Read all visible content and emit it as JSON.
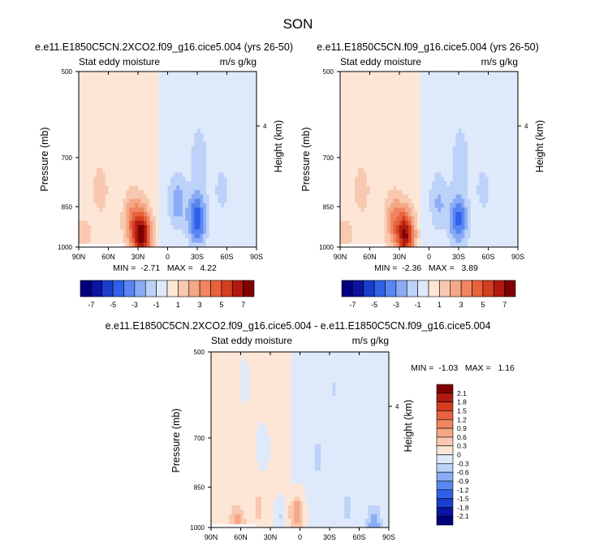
{
  "page_title": "SON",
  "panels": [
    {
      "title": "e.e11.E1850C5CN.2XCO2.f09_g16.cice5.004 (yrs 26-50)",
      "left_label": "Stat eddy moisture",
      "right_label": "m/s g/kg",
      "ylabel": "Pressure (mb)",
      "y2label": "Height (km)",
      "minmax": "MIN =  -2.71   MAX =   4.22"
    },
    {
      "title": "e.e11.E1850C5CN.f09_g16.cice5.004 (yrs 26-50)",
      "left_label": "Stat eddy moisture",
      "right_label": "m/s g/kg",
      "ylabel": "Pressure (mb)",
      "y2label": "Height (km)",
      "minmax": "MIN =  -2.36   MAX =   3.89"
    },
    {
      "title": "e.e11.E1850C5CN.2XCO2.f09_g16.cice5.004 - e.e11.E1850C5CN.f09_g16.cice5.004",
      "left_label": "Stat eddy moisture",
      "right_label": "m/s g/kg",
      "ylabel": "Pressure (mb)",
      "y2label": "Height (km)",
      "minmax": "MIN =  -1.03   MAX =   1.16"
    }
  ],
  "axes": {
    "x_ticks": [
      "90N",
      "60N",
      "30N",
      "0",
      "30S",
      "60S",
      "90S"
    ],
    "y_ticks": [
      "500",
      "700",
      "850",
      "1000"
    ],
    "y2_ticks": [
      "4"
    ]
  },
  "colorbar_top": {
    "colors": [
      "#00007f",
      "#0a14a0",
      "#1b3ecc",
      "#3060e8",
      "#5a86f2",
      "#8aacf6",
      "#bdd2f8",
      "#dee9fb",
      "#fde6d6",
      "#f8c8b0",
      "#f5a886",
      "#f08560",
      "#e8623d",
      "#d33e20",
      "#b01a10",
      "#7f0000"
    ],
    "labels": [
      "-7",
      "-5",
      "-3",
      "-1",
      "1",
      "3",
      "5",
      "7"
    ]
  },
  "colorbar_bottom": {
    "colors": [
      "#00007f",
      "#0a14a0",
      "#1b3ecc",
      "#3060e8",
      "#5a86f2",
      "#8aacf6",
      "#bdd2f8",
      "#dee9fb",
      "#fde6d6",
      "#f8c8b0",
      "#f5a886",
      "#f08560",
      "#e8623d",
      "#d33e20",
      "#b01a10",
      "#7f0000"
    ],
    "labels": [
      "-2.1",
      "-1.8",
      "-1.5",
      "-1.2",
      "-0.9",
      "-0.6",
      "-0.3",
      "0",
      "0.3",
      "0.6",
      "0.9",
      "1.2",
      "1.5",
      "1.8",
      "2.1"
    ]
  },
  "chart_data": [
    {
      "type": "heatmap",
      "title": "e.e11.E1850C5CN.2XCO2.f09_g16.cice5.004 (yrs 26-50)",
      "xlabel": "",
      "ylabel": "Pressure (mb)",
      "y2label": "Height (km)",
      "x": [
        "90N",
        "60N",
        "30N",
        "0",
        "30S",
        "60S",
        "90S"
      ],
      "y": [
        500,
        700,
        850,
        1000
      ],
      "min": -2.71,
      "max": 4.22,
      "features": [
        {
          "lat": 26,
          "p": 955,
          "value": 4.0
        },
        {
          "lat": 36,
          "p": 900,
          "value": 1.5
        },
        {
          "lat": 68,
          "p": 800,
          "value": 0.6
        },
        {
          "lat": 85,
          "p": 960,
          "value": 0.6
        },
        {
          "lat": -10,
          "p": 840,
          "value": -1.2
        },
        {
          "lat": -30,
          "p": 900,
          "value": -2.5
        },
        {
          "lat": -32,
          "p": 700,
          "value": -0.6
        },
        {
          "lat": -55,
          "p": 800,
          "value": -0.5
        }
      ]
    },
    {
      "type": "heatmap",
      "title": "e.e11.E1850C5CN.f09_g16.cice5.004 (yrs 26-50)",
      "xlabel": "",
      "ylabel": "Pressure (mb)",
      "y2label": "Height (km)",
      "x": [
        "90N",
        "60N",
        "30N",
        "0",
        "30S",
        "60S",
        "90S"
      ],
      "y": [
        500,
        700,
        850,
        1000
      ],
      "min": -2.36,
      "max": 3.89,
      "features": [
        {
          "lat": 24,
          "p": 955,
          "value": 3.7
        },
        {
          "lat": 36,
          "p": 900,
          "value": 1.4
        },
        {
          "lat": 68,
          "p": 800,
          "value": 0.6
        },
        {
          "lat": 85,
          "p": 960,
          "value": 0.6
        },
        {
          "lat": -10,
          "p": 840,
          "value": -1.0
        },
        {
          "lat": -30,
          "p": 900,
          "value": -2.2
        },
        {
          "lat": -32,
          "p": 700,
          "value": -0.6
        },
        {
          "lat": -55,
          "p": 800,
          "value": -0.5
        }
      ]
    },
    {
      "type": "heatmap",
      "title": "e.e11.E1850C5CN.2XCO2.f09_g16.cice5.004 - e.e11.E1850C5CN.f09_g16.cice5.004",
      "xlabel": "",
      "ylabel": "Pressure (mb)",
      "y2label": "Height (km)",
      "x": [
        "90N",
        "60N",
        "30N",
        "0",
        "30S",
        "60S",
        "90S"
      ],
      "y": [
        500,
        700,
        850,
        1000
      ],
      "min": -1.03,
      "max": 1.16,
      "features": [
        {
          "lat": 63,
          "p": 990,
          "value": 0.7
        },
        {
          "lat": 78,
          "p": 910,
          "value": 0.2
        },
        {
          "lat": 42,
          "p": 920,
          "value": 0.3
        },
        {
          "lat": 3,
          "p": 945,
          "value": 1.0
        },
        {
          "lat": 20,
          "p": 960,
          "value": -0.4
        },
        {
          "lat": 38,
          "p": 730,
          "value": -0.3
        },
        {
          "lat": -18,
          "p": 760,
          "value": -0.3
        },
        {
          "lat": -48,
          "p": 920,
          "value": -0.3
        },
        {
          "lat": -75,
          "p": 990,
          "value": -0.8
        },
        {
          "lat": 56,
          "p": 560,
          "value": -0.2
        },
        {
          "lat": -35,
          "p": 580,
          "value": -0.2
        }
      ]
    }
  ]
}
